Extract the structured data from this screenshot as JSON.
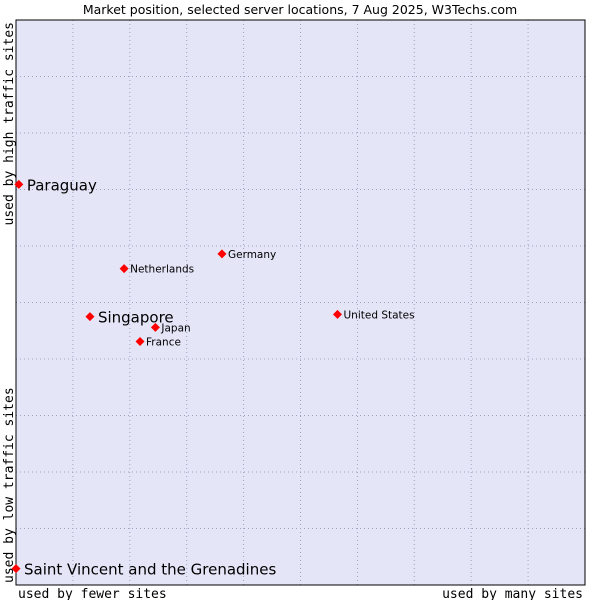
{
  "chart_data": {
    "type": "scatter",
    "title": "Market position, selected server locations, 7 Aug 2025, W3Techs.com",
    "xlabel_left": "used by fewer sites",
    "xlabel_right": "used by many sites",
    "ylabel_bottom": "used by low traffic sites",
    "ylabel_top": "used by high traffic sites",
    "xlim": [
      0,
      100
    ],
    "ylim": [
      0,
      100
    ],
    "grid": true,
    "colors": {
      "plot_bg": "#e4e6f8",
      "grid": "#a0a0c0",
      "point": "#ff0000",
      "border": "#000000"
    },
    "points": [
      {
        "label": "Paraguay",
        "x": 0.5,
        "y": 70.9,
        "emphasis": true
      },
      {
        "label": "Singapore",
        "x": 13.0,
        "y": 47.5,
        "emphasis": true
      },
      {
        "label": "Saint Vincent and the Grenadines",
        "x": 0.0,
        "y": 2.9,
        "emphasis": true
      },
      {
        "label": "Germany",
        "x": 36.2,
        "y": 58.6,
        "emphasis": false
      },
      {
        "label": "Netherlands",
        "x": 19.0,
        "y": 56.0,
        "emphasis": false
      },
      {
        "label": "United States",
        "x": 56.5,
        "y": 47.9,
        "emphasis": false
      },
      {
        "label": "Japan",
        "x": 24.5,
        "y": 45.6,
        "emphasis": false
      },
      {
        "label": "France",
        "x": 21.8,
        "y": 43.1,
        "emphasis": false
      }
    ]
  }
}
